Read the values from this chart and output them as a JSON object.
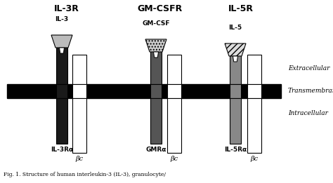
{
  "title_labels": [
    "IL-3R",
    "GM-CSFR",
    "IL-5R"
  ],
  "ligand_labels": [
    "IL-3",
    "GM-CSF",
    "IL-5"
  ],
  "side_labels": [
    "Extracellular",
    "Transmembranous",
    "Intracellular"
  ],
  "alpha_labels": [
    "IL-3Rα",
    "GMRα",
    "IL-5Rα"
  ],
  "beta_label": "βc",
  "caption": "Fig. 1. Structure of human interleukin-3 (IL-3), granulocyte/",
  "bg_color": "#ffffff",
  "membrane_color": "#000000",
  "alpha_colors": [
    "#1a1a1a",
    "#555555",
    "#888888"
  ],
  "beta_color": "#ffffff",
  "ligand_colors": [
    "#bbbbbb",
    "#cccccc",
    "#dddddd"
  ],
  "ligand_hatches": [
    null,
    "....",
    "////"
  ]
}
